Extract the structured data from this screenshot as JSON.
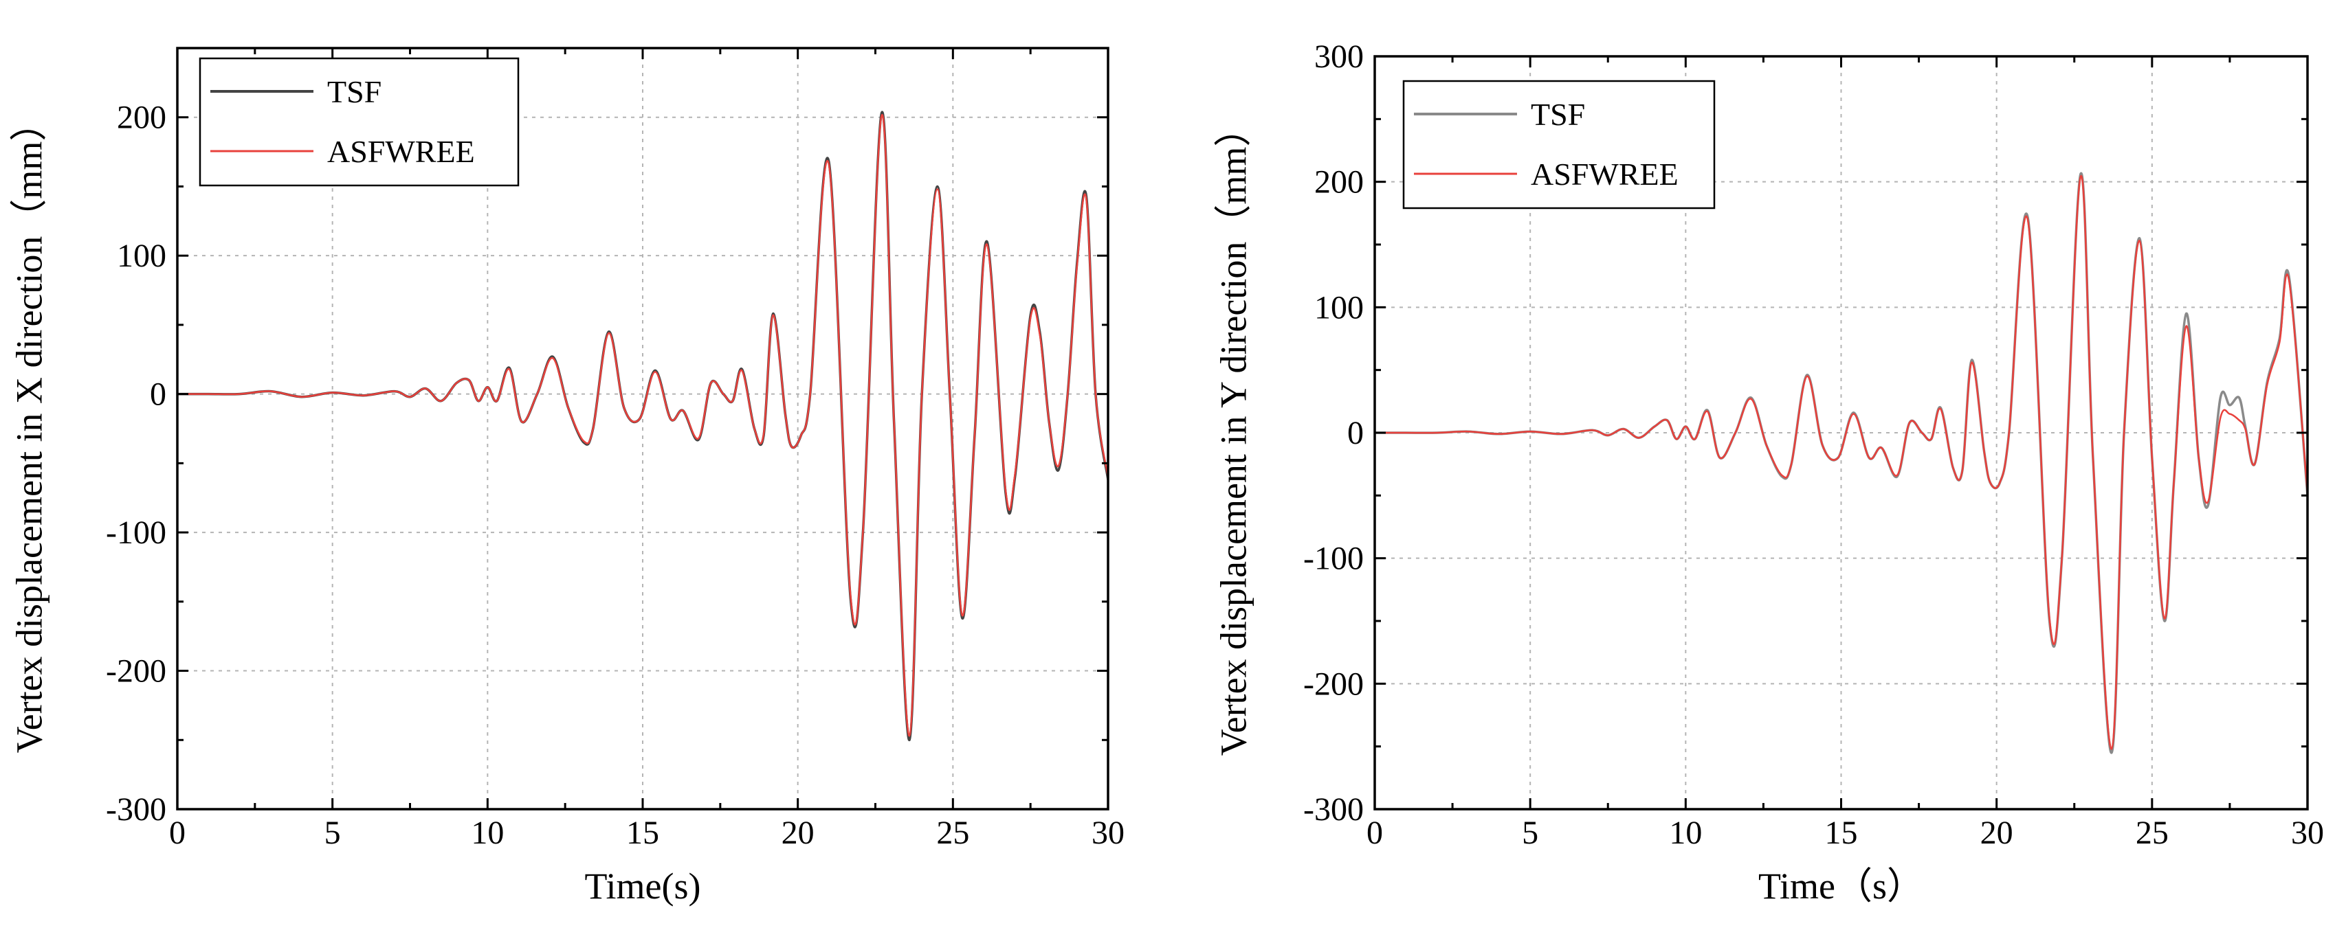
{
  "chart_data": [
    {
      "type": "line",
      "id": "left",
      "xlabel": "Time(s)",
      "ylabel": "Vertex displacement in X direction（mm）",
      "xlim": [
        0,
        30
      ],
      "ylim": [
        -300,
        250
      ],
      "xticks": [
        0,
        5,
        10,
        15,
        20,
        25,
        30
      ],
      "yticks": [
        -300,
        -200,
        -100,
        0,
        100,
        200
      ],
      "x_minor": 2.5,
      "y_minor": 50,
      "legend_position": "top-left",
      "series": [
        {
          "name": "TSF",
          "color": "#444444",
          "x": [
            0,
            1,
            2,
            3,
            4,
            5,
            6,
            7,
            7.5,
            8,
            8.5,
            9,
            9.4,
            9.7,
            10,
            10.3,
            10.7,
            11.1,
            11.6,
            12.1,
            12.6,
            13.1,
            13.4,
            13.9,
            14.4,
            14.9,
            15.4,
            15.9,
            16.3,
            16.8,
            17.2,
            17.6,
            17.9,
            18.2,
            18.6,
            18.9,
            19.2,
            19.6,
            19.8,
            20.1,
            20.4,
            21.0,
            21.7,
            22.1,
            22.7,
            23.1,
            23.6,
            24.0,
            24.5,
            24.9,
            25.3,
            25.7,
            26.1,
            26.7,
            27.0,
            27.5,
            27.8,
            28.1,
            28.4,
            28.7,
            29.0,
            29.3,
            29.6,
            30.0
          ],
          "y": [
            0,
            0,
            0,
            2,
            -2,
            1,
            -1,
            2,
            -2,
            4,
            -5,
            8,
            10,
            -5,
            5,
            -5,
            19,
            -20,
            0,
            27,
            -10,
            -35,
            -25,
            45,
            -10,
            -18,
            17,
            -18,
            -12,
            -33,
            8,
            0,
            -5,
            18,
            -25,
            -30,
            58,
            -15,
            -38,
            -30,
            0,
            168,
            -148,
            -100,
            203,
            -20,
            -250,
            0,
            150,
            0,
            -162,
            -30,
            110,
            -72,
            -60,
            57,
            45,
            -20,
            -55,
            0,
            95,
            143,
            0,
            -62
          ]
        },
        {
          "name": "ASFWREE",
          "color": "#e8413c",
          "x": [
            0,
            1,
            2,
            3,
            4,
            5,
            6,
            7,
            7.5,
            8,
            8.5,
            9,
            9.4,
            9.7,
            10,
            10.3,
            10.7,
            11.1,
            11.6,
            12.1,
            12.6,
            13.1,
            13.4,
            13.9,
            14.4,
            14.9,
            15.4,
            15.9,
            16.3,
            16.8,
            17.2,
            17.6,
            17.9,
            18.2,
            18.6,
            18.9,
            19.2,
            19.6,
            19.8,
            20.1,
            20.4,
            21.0,
            21.7,
            22.1,
            22.7,
            23.1,
            23.6,
            24.0,
            24.5,
            24.9,
            25.3,
            25.7,
            26.1,
            26.7,
            27.0,
            27.5,
            27.8,
            28.1,
            28.4,
            28.7,
            29.0,
            29.3,
            29.6,
            30.0
          ],
          "y": [
            0,
            0,
            0,
            2,
            -2,
            1,
            -1,
            2,
            -2,
            4,
            -5,
            8,
            10,
            -5,
            5,
            -5,
            18,
            -20,
            0,
            26,
            -10,
            -34,
            -25,
            44,
            -10,
            -18,
            16,
            -18,
            -12,
            -32,
            8,
            0,
            -5,
            17,
            -25,
            -29,
            57,
            -15,
            -38,
            -30,
            0,
            166,
            -146,
            -100,
            201,
            -20,
            -247,
            0,
            148,
            0,
            -160,
            -30,
            108,
            -70,
            -58,
            55,
            43,
            -20,
            -52,
            0,
            93,
            141,
            0,
            -60
          ]
        }
      ]
    },
    {
      "type": "line",
      "id": "right",
      "xlabel": "Time（s）",
      "ylabel": "Vertex displacement in Y direction（mm）",
      "xlim": [
        0,
        30
      ],
      "ylim": [
        -300,
        300
      ],
      "xticks": [
        0,
        5,
        10,
        15,
        20,
        25,
        30
      ],
      "yticks": [
        -300,
        -200,
        -100,
        0,
        100,
        200,
        300
      ],
      "x_minor": 2.5,
      "y_minor": 50,
      "legend_position": "top-left",
      "series": [
        {
          "name": "TSF",
          "color": "#8a8a8a",
          "x": [
            0,
            1,
            2,
            3,
            4,
            5,
            6,
            7,
            7.5,
            8,
            8.5,
            9,
            9.4,
            9.7,
            10,
            10.3,
            10.7,
            11.1,
            11.6,
            12.1,
            12.6,
            13.1,
            13.4,
            13.9,
            14.4,
            14.9,
            15.4,
            15.9,
            16.3,
            16.8,
            17.2,
            17.6,
            17.9,
            18.2,
            18.6,
            18.9,
            19.2,
            19.6,
            19.8,
            20.1,
            20.4,
            21.0,
            21.7,
            22.1,
            22.7,
            23.1,
            23.7,
            24.1,
            24.6,
            25.0,
            25.4,
            25.7,
            26.1,
            26.5,
            26.8,
            27.2,
            27.5,
            27.8,
            28.0,
            28.3,
            28.7,
            29.1,
            29.4,
            30.0
          ],
          "y": [
            0,
            0,
            0,
            1,
            -1,
            1,
            -1,
            2,
            -2,
            3,
            -4,
            5,
            10,
            -5,
            5,
            -5,
            18,
            -20,
            0,
            28,
            -10,
            -35,
            -25,
            46,
            -10,
            -20,
            16,
            -20,
            -12,
            -35,
            8,
            0,
            -5,
            20,
            -28,
            -30,
            58,
            -15,
            -40,
            -40,
            0,
            172,
            -150,
            -100,
            206,
            -20,
            -255,
            0,
            155,
            -20,
            -150,
            -40,
            95,
            -20,
            -58,
            28,
            22,
            28,
            5,
            -25,
            40,
            75,
            125,
            -50
          ]
        },
        {
          "name": "ASFWREE",
          "color": "#e8413c",
          "x": [
            0,
            1,
            2,
            3,
            4,
            5,
            6,
            7,
            7.5,
            8,
            8.5,
            9,
            9.4,
            9.7,
            10,
            10.3,
            10.7,
            11.1,
            11.6,
            12.1,
            12.6,
            13.1,
            13.4,
            13.9,
            14.4,
            14.9,
            15.4,
            15.9,
            16.3,
            16.8,
            17.2,
            17.6,
            17.9,
            18.2,
            18.6,
            18.9,
            19.2,
            19.6,
            19.8,
            20.1,
            20.4,
            21.0,
            21.7,
            22.1,
            22.7,
            23.1,
            23.7,
            24.1,
            24.6,
            25.0,
            25.4,
            25.7,
            26.1,
            26.5,
            26.8,
            27.2,
            27.5,
            27.8,
            28.0,
            28.3,
            28.7,
            29.1,
            29.4,
            30.0
          ],
          "y": [
            0,
            0,
            0,
            1,
            -1,
            1,
            -1,
            2,
            -2,
            3,
            -4,
            5,
            10,
            -5,
            5,
            -5,
            17,
            -20,
            0,
            27,
            -10,
            -34,
            -25,
            45,
            -10,
            -20,
            15,
            -20,
            -12,
            -34,
            8,
            0,
            -5,
            19,
            -28,
            -30,
            56,
            -15,
            -40,
            -40,
            0,
            170,
            -148,
            -100,
            204,
            -20,
            -252,
            0,
            153,
            -20,
            -148,
            -40,
            85,
            -20,
            -55,
            12,
            15,
            10,
            3,
            -25,
            38,
            72,
            122,
            -48
          ]
        }
      ]
    }
  ]
}
